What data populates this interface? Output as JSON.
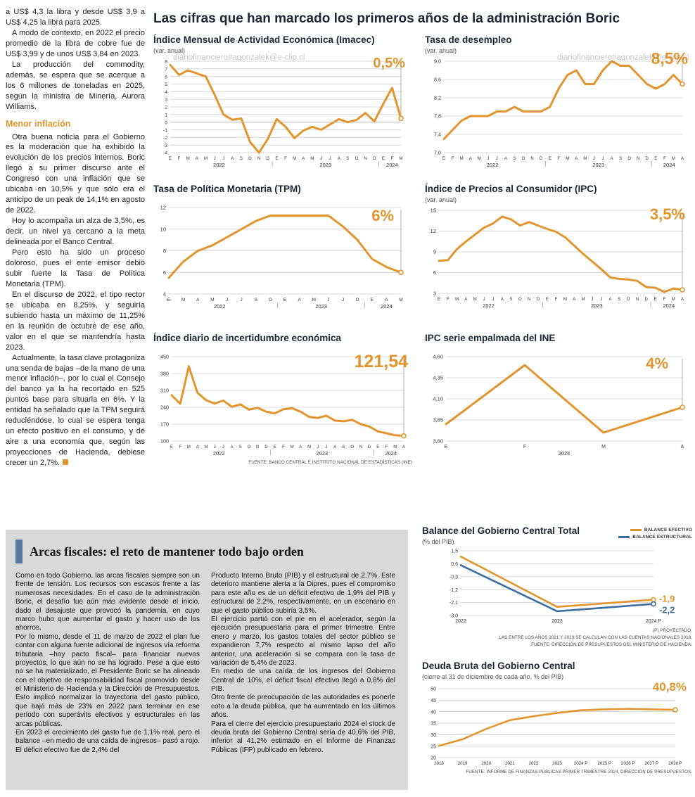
{
  "watermark": "diariofinanciero#agonzalek@e-clip.cl",
  "main": {
    "title": "Las cifras que han marcado los primeros años de la administración Boric"
  },
  "left_column": {
    "paragraphs": [
      "a US$ 4,3 la libra y desde US$ 3,9 a US$ 4,25 la libra para 2025.",
      "A modo de contexto, en 2022 el precio promedio de la libra de cobre fue de US$ 3,99 y de unos US$ 3,84 en 2023.",
      "La producción del commodity, además, se espera que se acerque a los 6 millones de toneladas en 2025, según la ministra de Minería, Aurora Williams."
    ],
    "subhead": "Menor inflación",
    "paragraphs2": [
      "Otra buena noticia para el Gobierno es la moderación que ha exhibido la evolución de los precios internos. Boric llegó a su primer discurso ante el Congreso con una inflación que se ubicaba en 10,5% y que sólo era el anticipo de un peak de 14,1% en agosto de 2022.",
      "Hoy lo acompaña un alza de 3,5%, es decir, un nivel ya cercano a la meta delineada por el Banco Central.",
      "Pero esto ha sido un proceso doloroso, pues el ente emisor debió subir fuerte la Tasa de Política Monetaria (TPM).",
      "En el discurso de 2022, el tipo rector se ubicaba en 8,25%, y seguiría subiendo hasta un máximo de 11,25% en la reunión de octubre de ese año, valor en el que se mantendría hasta 2023.",
      "Actualmente, la tasa clave protagoniza una senda de bajas –de la mano de una menor inflación–, por lo cual el Consejo del banco ya la ha recortado en 525 puntos base para situarla en 6%. Y la entidad ha señalado que la TPM seguirá reduciéndose, lo cual se espera tenga un efecto positivo en el consumo, y dé aire a una economía que, según las proyecciones de Hacienda, debiese crecer un 2,7%."
    ]
  },
  "fiscal_box": {
    "title": "Arcas fiscales: el reto de mantener todo bajo orden",
    "col1": [
      "Como en todo Gobierno, las arcas fiscales siempre son un frente de tensión. Los recursos son escasos frente a las numerosas necesidades. En el caso de la administración Boric, el desafío fue aún más evidente desde el inicio, dado el desajuste que provocó la pandemia, en cuyo marco hubo que aumentar el gasto y hacer uso de los ahorros.",
      "Por lo mismo, desde el 11 de marzo de 2022 el plan fue contar con alguna fuente adicional de ingresos vía reforma tributaria –hoy pacto fiscal– para financiar nuevos proyectos, lo que aún no se ha logrado. Pese a que esto no se ha materializado, el Presidente Boric se ha alineado con el objetivo de responsabilidad fiscal promovido desde el Ministerio de Hacienda y la Dirección de Presupuestos. Esto implicó normalizar la trayectoria del gasto público, que bajó más de 23% en 2022 para terminar en ese período con superávits efectivos y estructurales en las arcas públicas.",
      "En 2023 el crecimiento del gasto fue de 1,1% real, pero el balance –en medio de una caída de ingresos– pasó a rojo. El déficit efectivo fue de 2,4% del"
    ],
    "col2": [
      "Producto Interno Bruto (PIB) y el estructural de 2,7%. Este deterioro mantiene alerta a la Dipres, pues el compromiso para este año es de un déficit efectivo de 1,9% del PIB y estructural de 2,2%, respectivamente, en un escenario en que el gasto público subiría 3,5%.",
      "El ejercicio partió con el pie en el acelerador, según la ejecución presupuestaria para el primer trimestre. Entre enero y marzo, los gastos totales del sector público se expandieron 7,7% respecto al mismo lapso del año anterior, una aceleración si se compara con la tasa de variación de 5,4% de 2023.",
      "En medio de una caída de los ingresos del Gobierno Central de 10%, el déficit fiscal efectivo llegó a 0,8% del PIB.",
      "Otro frente de preocupación de las autoridades es ponerle coto a la deuda pública, que ha aumentado en los últimos años.",
      "Para el cierre del ejercicio presupuestario 2024 el stock de deuda bruta del Gobierno Central sería de 40,6% del PIB, inferior al 41,2% estimado en el Informe de Finanzas Públicas (IFP) publicado en febrero."
    ]
  },
  "chart_data": [
    {
      "id": "imacec",
      "type": "line",
      "title": "Índice Mensual de Actividad Económica (Imacec)",
      "subtitle": "(var. anual)",
      "callout": "0,5%",
      "color": "#e2952e",
      "ylim": [
        -4,
        8
      ],
      "y_ticks": [
        {
          "v": 8,
          "l": "8"
        },
        {
          "v": 7,
          "l": "7"
        },
        {
          "v": 6,
          "l": "6"
        },
        {
          "v": 5,
          "l": "5"
        },
        {
          "v": 4,
          "l": "4"
        },
        {
          "v": 3,
          "l": "3"
        },
        {
          "v": 2,
          "l": "2"
        },
        {
          "v": 1,
          "l": "1"
        },
        {
          "v": 0,
          "l": "0"
        },
        {
          "v": -1,
          "l": "-1"
        },
        {
          "v": -2,
          "l": "-2"
        },
        {
          "v": -3,
          "l": "-3"
        },
        {
          "v": -4,
          "l": "-4"
        }
      ],
      "x_labels": [
        "E",
        "F",
        "M",
        "A",
        "M",
        "J",
        "J",
        "A",
        "S",
        "O",
        "N",
        "D",
        "E",
        "F",
        "M",
        "A",
        "M",
        "J",
        "J",
        "A",
        "S",
        "O",
        "N",
        "D",
        "E",
        "F",
        "M"
      ],
      "year_labels": [
        {
          "label": "2022",
          "from": 0,
          "to": 11
        },
        {
          "label": "2023",
          "from": 12,
          "to": 23
        },
        {
          "label": "2024",
          "from": 24,
          "to": 26
        }
      ],
      "values": [
        7.5,
        6.2,
        6.8,
        6.4,
        6.0,
        3.6,
        1.0,
        0.3,
        0.5,
        -2.6,
        -4.0,
        -2.2,
        0.4,
        -0.6,
        -2.1,
        -1.1,
        -0.6,
        -1.0,
        -0.3,
        0.4,
        0.0,
        0.3,
        1.2,
        0.1,
        2.4,
        4.5,
        0.5
      ],
      "drop_line": true,
      "tick_size": 6.8,
      "x_label_size": 6,
      "pad": {
        "l": 24,
        "r": 16,
        "t": 8,
        "b": 24
      }
    },
    {
      "id": "desempleo",
      "type": "line",
      "title": "Tasa de desempleo",
      "subtitle": "(var. anual)",
      "callout": "8,5%",
      "color": "#e2952e",
      "ylim": [
        7.0,
        9.0
      ],
      "y_ticks": [
        {
          "v": 9.0,
          "l": "9,0"
        },
        {
          "v": 8.6,
          "l": "8,6"
        },
        {
          "v": 8.2,
          "l": "8,2"
        },
        {
          "v": 7.8,
          "l": "7,8"
        },
        {
          "v": 7.4,
          "l": "7,4"
        },
        {
          "v": 7.0,
          "l": "7,0"
        }
      ],
      "x_labels": [
        "E",
        "F",
        "M",
        "A",
        "M",
        "J",
        "J",
        "A",
        "S",
        "O",
        "N",
        "D",
        "E",
        "F",
        "M",
        "A",
        "M",
        "J",
        "J",
        "A",
        "S",
        "O",
        "N",
        "D",
        "E",
        "F",
        "M",
        "A"
      ],
      "year_labels": [
        {
          "label": "2022",
          "from": 0,
          "to": 11
        },
        {
          "label": "2023",
          "from": 12,
          "to": 23
        },
        {
          "label": "2024",
          "from": 24,
          "to": 27
        }
      ],
      "values": [
        7.3,
        7.5,
        7.7,
        7.8,
        7.8,
        7.8,
        7.9,
        7.9,
        8.0,
        7.9,
        7.9,
        7.9,
        8.0,
        8.4,
        8.7,
        8.8,
        8.5,
        8.5,
        8.8,
        9.0,
        8.9,
        8.9,
        8.7,
        8.5,
        8.4,
        8.5,
        8.7,
        8.5
      ],
      "drop_line": true,
      "tick_size": 7.2,
      "x_label_size": 6,
      "pad": {
        "l": 27,
        "r": 14,
        "t": 8,
        "b": 24
      }
    },
    {
      "id": "tpm",
      "type": "line",
      "title": "Tasa de Política Monetaria (TPM)",
      "callout": "6%",
      "color": "#e2952e",
      "ylim": [
        4,
        12
      ],
      "y_ticks": [
        {
          "v": 12,
          "l": "12"
        },
        {
          "v": 10,
          "l": "10"
        },
        {
          "v": 8,
          "l": "8"
        },
        {
          "v": 6,
          "l": "6"
        },
        {
          "v": 4,
          "l": "4"
        }
      ],
      "x_labels": [
        "E",
        "M",
        "A",
        "M",
        "J",
        "J",
        "S",
        "O",
        "E",
        "A",
        "M",
        "J",
        "J",
        "O",
        "E",
        "A",
        "M"
      ],
      "year_labels": [
        {
          "label": "2022",
          "from": 0,
          "to": 7
        },
        {
          "label": "2023",
          "from": 8,
          "to": 13
        },
        {
          "label": "2024",
          "from": 14,
          "to": 16
        }
      ],
      "values": [
        5.5,
        7.0,
        8.0,
        8.5,
        9.25,
        10.0,
        10.75,
        11.25,
        11.25,
        11.25,
        11.25,
        11.25,
        10.25,
        9.0,
        7.25,
        6.5,
        6.0
      ],
      "drop_line": true,
      "tick_size": 7.5,
      "x_label_size": 6.4,
      "pad": {
        "l": 22,
        "r": 16,
        "t": 8,
        "b": 24
      }
    },
    {
      "id": "ipc",
      "type": "line",
      "title": "Índice de Precios al Consumidor (IPC)",
      "subtitle": "(var. anual)",
      "callout": "3,5%",
      "color": "#e2952e",
      "ylim": [
        3,
        15
      ],
      "y_ticks": [
        {
          "v": 15,
          "l": "15"
        },
        {
          "v": 12,
          "l": "12"
        },
        {
          "v": 9,
          "l": "9"
        },
        {
          "v": 6,
          "l": "6"
        },
        {
          "v": 3,
          "l": "3"
        }
      ],
      "x_labels": [
        "E",
        "F",
        "M",
        "A",
        "M",
        "J",
        "J",
        "A",
        "S",
        "O",
        "N",
        "D",
        "E",
        "F",
        "M",
        "A",
        "M",
        "J",
        "J",
        "A",
        "S",
        "O",
        "N",
        "D",
        "E",
        "F",
        "M",
        "A"
      ],
      "year_labels": [
        {
          "label": "2022",
          "from": 0,
          "to": 11
        },
        {
          "label": "2023",
          "from": 12,
          "to": 23
        },
        {
          "label": "2024",
          "from": 24,
          "to": 27
        }
      ],
      "values": [
        7.7,
        7.8,
        9.4,
        10.5,
        11.5,
        12.5,
        13.1,
        14.1,
        13.7,
        12.8,
        13.3,
        12.8,
        12.3,
        11.9,
        11.1,
        9.9,
        8.7,
        7.6,
        6.5,
        5.3,
        5.1,
        5.0,
        4.8,
        3.9,
        3.8,
        3.2,
        3.7,
        3.5
      ],
      "drop_line": true,
      "tick_size": 7.5,
      "x_label_size": 6,
      "pad": {
        "l": 20,
        "r": 14,
        "t": 8,
        "b": 24
      }
    },
    {
      "id": "incertidumbre",
      "type": "line",
      "title": "Índice diario de incertidumbre económica",
      "callout": "121,54",
      "color": "#e2952e",
      "fuente": "FUENTE: BANCO CENTRAL E INSTITUTO NACIONAL DE ESTADÍSTICAS (INE)",
      "ylim": [
        100,
        450
      ],
      "y_ticks": [
        {
          "v": 450,
          "l": "450"
        },
        {
          "v": 380,
          "l": "380"
        },
        {
          "v": 310,
          "l": "310"
        },
        {
          "v": 240,
          "l": "240"
        },
        {
          "v": 170,
          "l": "170"
        },
        {
          "v": 100,
          "l": "100"
        }
      ],
      "x_labels": [
        "E",
        "F",
        "M",
        "A",
        "M",
        "J",
        "J",
        "A",
        "S",
        "O",
        "N",
        "D",
        "E",
        "F",
        "M",
        "A",
        "M",
        "J",
        "J",
        "A",
        "S",
        "O",
        "N",
        "D",
        "E",
        "F",
        "M",
        "A"
      ],
      "year_labels": [
        {
          "label": "2022",
          "from": 0,
          "to": 11
        },
        {
          "label": "2023",
          "from": 12,
          "to": 23
        },
        {
          "label": "2024",
          "from": 24,
          "to": 27
        }
      ],
      "values": [
        290,
        255,
        410,
        300,
        270,
        255,
        268,
        242,
        252,
        230,
        238,
        222,
        215,
        232,
        236,
        222,
        200,
        196,
        205,
        185,
        182,
        188,
        170,
        160,
        140,
        132,
        124,
        121.54
      ],
      "drop_line": true,
      "tick_size": 7.2,
      "x_label_size": 6,
      "pad": {
        "l": 26,
        "r": 12,
        "t": 8,
        "b": 24
      }
    },
    {
      "id": "ipc-ine",
      "type": "line",
      "title": "IPC serie empalmada del INE",
      "callout": "4%",
      "color": "#e2952e",
      "ylim": [
        3.6,
        4.6
      ],
      "y_ticks": [
        {
          "v": 4.6,
          "l": "4,60"
        },
        {
          "v": 4.35,
          "l": "4,35"
        },
        {
          "v": 4.1,
          "l": "4,10"
        },
        {
          "v": 3.85,
          "l": "3,85"
        },
        {
          "v": 3.6,
          "l": "3,60"
        }
      ],
      "x_labels": [
        "E",
        "F",
        "M",
        "A"
      ],
      "year_labels": [
        {
          "label": "2024",
          "from": 0,
          "to": 3
        }
      ],
      "values": [
        3.8,
        4.5,
        3.7,
        4.0
      ],
      "drop_line": true,
      "tick_size": 7.5,
      "x_label_size": 7,
      "pad": {
        "l": 30,
        "r": 14,
        "t": 8,
        "b": 24
      }
    },
    {
      "id": "balance",
      "type": "line",
      "title": "Balance del Gobierno Central Total",
      "subtitle": "(% del PIB)",
      "color": "#e2952e",
      "ylim": [
        -3.0,
        1.5
      ],
      "y_ticks": [
        {
          "v": 1.5,
          "l": "1,5"
        },
        {
          "v": 0.6,
          "l": "0,6"
        },
        {
          "v": -0.3,
          "l": "-0,3"
        },
        {
          "v": -1.2,
          "l": "-1,2"
        },
        {
          "v": -2.1,
          "l": "-2,1"
        },
        {
          "v": -3.0,
          "l": "-3,0"
        }
      ],
      "x_labels": [
        "2022",
        "2023",
        "2024 P"
      ],
      "series": [
        {
          "name": "BALANCE EFECTIVO",
          "color": "#e2952e",
          "values": [
            1.1,
            -2.4,
            -1.9
          ],
          "callout": "-1,9",
          "callout_dy": -1
        },
        {
          "name": "BALANCE ESTRUCTURAL",
          "color": "#3c6e9f",
          "values": [
            0.5,
            -2.7,
            -2.2
          ],
          "callout": "-2,2",
          "callout_dy": 9
        }
      ],
      "notes": [
        "(P) PROYECTADO.",
        "LAS ENTRE LOS AÑOS 2021 Y 2023 SE CALCULAN  CON LAS CUENTAS NACIONALES 2018.",
        "FUENTE: DIRECCIÓN DE PRESUPUESTOS DEL MINISTERIO DE HACIENDA."
      ],
      "line_width": 2.6,
      "tick_size": 7,
      "x_label_size": 7,
      "pad": {
        "l": 55,
        "r": 55,
        "t": 6,
        "b": 14
      }
    },
    {
      "id": "deuda",
      "type": "line",
      "title": "Deuda Bruta del Gobierno Central",
      "subtitle": "(cierre al 31 de diciembre de cada año, % del PIB)",
      "callout": "40,8%",
      "color": "#e2952e",
      "fuente": "FUENTE: INFORME DE FINANZAS PÚBLICAS PRIMER TRIMESTRE 2024, DIRECCIÓN DE PRESUPUESTOS.",
      "ylim": [
        20,
        50
      ],
      "y_ticks": [
        {
          "v": 50,
          "l": "50"
        },
        {
          "v": 45,
          "l": "45"
        },
        {
          "v": 40,
          "l": "40"
        },
        {
          "v": 35,
          "l": "35"
        },
        {
          "v": 30,
          "l": "30"
        },
        {
          "v": 25,
          "l": "25"
        },
        {
          "v": 20,
          "l": "20"
        }
      ],
      "x_labels": [
        "2018",
        "2019",
        "2020",
        "2021",
        "2022",
        "2023",
        "2024 P",
        "2025 P",
        "2026 P",
        "2027 P",
        "2028 P"
      ],
      "values": [
        25.1,
        28.0,
        32.5,
        36.3,
        38.0,
        39.4,
        40.6,
        41.0,
        41.2,
        41.0,
        40.8
      ],
      "drop_line": false,
      "line_width": 2.6,
      "tick_size": 7,
      "x_label_size": 6.2,
      "pad": {
        "l": 24,
        "r": 24,
        "t": 10,
        "b": 14
      }
    }
  ]
}
